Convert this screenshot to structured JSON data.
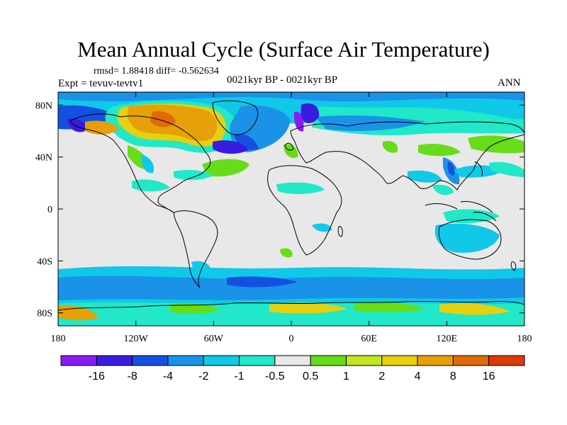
{
  "title": "Mean Annual Cycle (Surface Air Temperature)",
  "stats": "rmsd= 1.88418 diff= -0.562634",
  "experiment": "Expt = tevuv-tevtv1",
  "period": "0021kyr BP - 0021kyr BP",
  "season": "ANN",
  "axes": {
    "lon_range": [
      -180,
      180
    ],
    "lat_range": [
      -90,
      90
    ],
    "lon_ticks": [
      {
        "value": -180,
        "label": "180"
      },
      {
        "value": -120,
        "label": "120W"
      },
      {
        "value": -60,
        "label": "60W"
      },
      {
        "value": 0,
        "label": "0"
      },
      {
        "value": 60,
        "label": "60E"
      },
      {
        "value": 120,
        "label": "120E"
      },
      {
        "value": 180,
        "label": "180"
      }
    ],
    "lat_ticks": [
      {
        "value": 80,
        "label": "80N"
      },
      {
        "value": 40,
        "label": "40N"
      },
      {
        "value": 0,
        "label": "0"
      },
      {
        "value": -40,
        "label": "40S"
      },
      {
        "value": -80,
        "label": "80S"
      }
    ]
  },
  "colorbar": {
    "colors": [
      "#8a1cf0",
      "#3a1ce0",
      "#1450e0",
      "#1a92e8",
      "#10c8e8",
      "#20e8c8",
      "#e8e8e8",
      "#66dd18",
      "#c2e620",
      "#e6d010",
      "#e6a008",
      "#e06a08",
      "#dc3a06"
    ],
    "labels": [
      "-16",
      "-8",
      "-4",
      "-2",
      "-1",
      "-0.5",
      "0.5",
      "1",
      "2",
      "4",
      "8",
      "16"
    ]
  },
  "map": {
    "background_color": "#e8e8e8",
    "coast_color": "#000000"
  }
}
